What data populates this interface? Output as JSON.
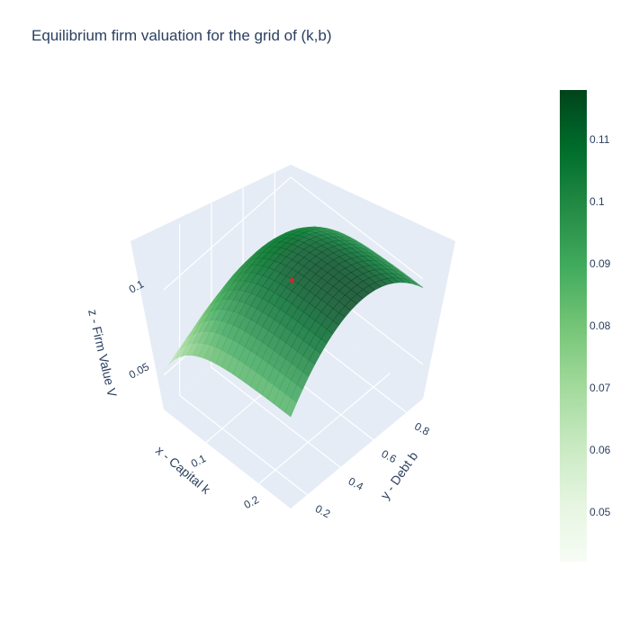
{
  "chart_data": {
    "type": "surface3d",
    "title": "Equilibrium firm valuation for the grid of (k,b)",
    "x_axis": {
      "label": "x - Capital k",
      "range": [
        0.02,
        0.26
      ],
      "ticks": [
        "0.1",
        "0.2"
      ],
      "tick_values": [
        0.1,
        0.2
      ]
    },
    "y_axis": {
      "label": "y - Debt b",
      "range": [
        0.1,
        0.9
      ],
      "ticks": [
        "0.2",
        "0.4",
        "0.6",
        "0.8"
      ],
      "tick_values": [
        0.2,
        0.4,
        0.6,
        0.8
      ]
    },
    "z_axis": {
      "label": "z - Firm Value V",
      "range": [
        0.03,
        0.13
      ],
      "ticks": [
        "0.05",
        "0.1"
      ],
      "tick_values": [
        0.05,
        0.1
      ]
    },
    "surface": {
      "k": [
        0.02,
        0.05,
        0.08,
        0.11,
        0.14,
        0.17,
        0.2,
        0.23,
        0.26
      ],
      "b": [
        0.1,
        0.2,
        0.3,
        0.4,
        0.5,
        0.6,
        0.7,
        0.8,
        0.9
      ],
      "description": "V rises with k then flattens; concave in b with peak near b=0.5",
      "z_min": 0.042,
      "z_max": 0.118
    },
    "marker": {
      "k": 0.14,
      "b": 0.5,
      "v": 0.102,
      "color": "#d62728"
    },
    "colorscale": "Greens",
    "colorbar": {
      "range": [
        0.042,
        0.118
      ],
      "ticks": [
        "0.05",
        "0.06",
        "0.07",
        "0.08",
        "0.09",
        "0.1",
        "0.11"
      ],
      "tick_values": [
        0.05,
        0.06,
        0.07,
        0.08,
        0.09,
        0.1,
        0.11
      ],
      "placement": "right"
    }
  }
}
